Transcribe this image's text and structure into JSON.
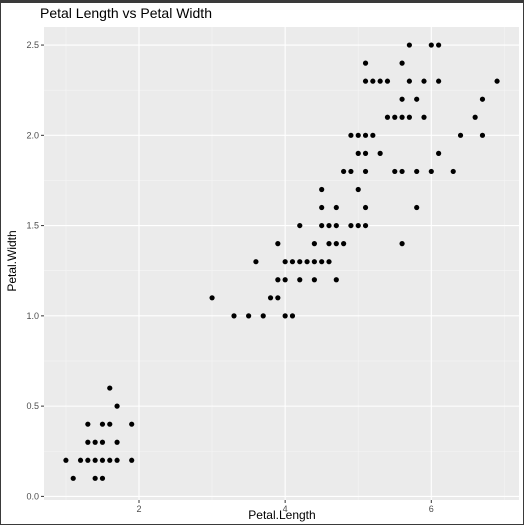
{
  "chart_data": {
    "type": "scatter",
    "title": "Petal Length vs Petal Width",
    "xlabel": "Petal.Length",
    "ylabel": "Petal.Width",
    "xlim": [
      0.7,
      7.2
    ],
    "ylim": [
      -0.02,
      2.6
    ],
    "x_ticks": [
      2,
      4,
      6
    ],
    "x_tick_labels": [
      "2",
      "4",
      "6"
    ],
    "y_ticks": [
      0,
      0.5,
      1,
      1.5,
      2,
      2.5
    ],
    "y_tick_labels": [
      "0.0",
      "0.5",
      "1.0",
      "1.5",
      "2.0",
      "2.5"
    ],
    "grid": true,
    "legend": "none",
    "colors": {
      "panel": "#ebebeb",
      "grid_major": "#ffffff",
      "point": "#000000"
    },
    "points": [
      [
        1.0,
        0.2
      ],
      [
        1.1,
        0.1
      ],
      [
        1.2,
        0.2
      ],
      [
        1.3,
        0.2
      ],
      [
        1.3,
        0.3
      ],
      [
        1.3,
        0.4
      ],
      [
        1.4,
        0.1
      ],
      [
        1.4,
        0.2
      ],
      [
        1.4,
        0.3
      ],
      [
        1.5,
        0.1
      ],
      [
        1.5,
        0.2
      ],
      [
        1.5,
        0.3
      ],
      [
        1.5,
        0.4
      ],
      [
        1.6,
        0.2
      ],
      [
        1.6,
        0.4
      ],
      [
        1.6,
        0.6
      ],
      [
        1.7,
        0.2
      ],
      [
        1.7,
        0.3
      ],
      [
        1.7,
        0.5
      ],
      [
        1.9,
        0.2
      ],
      [
        1.9,
        0.4
      ],
      [
        3.0,
        1.1
      ],
      [
        3.3,
        1.0
      ],
      [
        3.5,
        1.0
      ],
      [
        3.6,
        1.3
      ],
      [
        3.7,
        1.0
      ],
      [
        3.8,
        1.1
      ],
      [
        3.9,
        1.1
      ],
      [
        3.9,
        1.2
      ],
      [
        3.9,
        1.4
      ],
      [
        4.0,
        1.0
      ],
      [
        4.0,
        1.2
      ],
      [
        4.0,
        1.3
      ],
      [
        4.1,
        1.0
      ],
      [
        4.1,
        1.3
      ],
      [
        4.2,
        1.2
      ],
      [
        4.2,
        1.3
      ],
      [
        4.2,
        1.5
      ],
      [
        4.3,
        1.3
      ],
      [
        4.4,
        1.2
      ],
      [
        4.4,
        1.3
      ],
      [
        4.4,
        1.4
      ],
      [
        4.5,
        1.3
      ],
      [
        4.5,
        1.5
      ],
      [
        4.5,
        1.6
      ],
      [
        4.5,
        1.7
      ],
      [
        4.6,
        1.3
      ],
      [
        4.6,
        1.4
      ],
      [
        4.6,
        1.5
      ],
      [
        4.7,
        1.2
      ],
      [
        4.7,
        1.4
      ],
      [
        4.7,
        1.5
      ],
      [
        4.7,
        1.6
      ],
      [
        4.8,
        1.4
      ],
      [
        4.8,
        1.8
      ],
      [
        4.9,
        1.5
      ],
      [
        4.9,
        1.8
      ],
      [
        4.9,
        2.0
      ],
      [
        5.0,
        1.5
      ],
      [
        5.0,
        1.7
      ],
      [
        5.0,
        1.9
      ],
      [
        5.0,
        2.0
      ],
      [
        5.1,
        1.5
      ],
      [
        5.1,
        1.6
      ],
      [
        5.1,
        1.8
      ],
      [
        5.1,
        1.9
      ],
      [
        5.1,
        2.0
      ],
      [
        5.1,
        2.3
      ],
      [
        5.1,
        2.4
      ],
      [
        5.2,
        2.0
      ],
      [
        5.2,
        2.3
      ],
      [
        5.3,
        1.9
      ],
      [
        5.3,
        2.3
      ],
      [
        5.4,
        2.1
      ],
      [
        5.4,
        2.3
      ],
      [
        5.5,
        1.8
      ],
      [
        5.5,
        2.1
      ],
      [
        5.6,
        1.4
      ],
      [
        5.6,
        1.8
      ],
      [
        5.6,
        2.1
      ],
      [
        5.6,
        2.2
      ],
      [
        5.6,
        2.4
      ],
      [
        5.7,
        2.1
      ],
      [
        5.7,
        2.3
      ],
      [
        5.7,
        2.5
      ],
      [
        5.8,
        1.6
      ],
      [
        5.8,
        1.8
      ],
      [
        5.8,
        2.2
      ],
      [
        5.9,
        2.1
      ],
      [
        5.9,
        2.3
      ],
      [
        6.0,
        1.8
      ],
      [
        6.0,
        2.5
      ],
      [
        6.1,
        1.9
      ],
      [
        6.1,
        2.3
      ],
      [
        6.1,
        2.5
      ],
      [
        6.3,
        1.8
      ],
      [
        6.4,
        2.0
      ],
      [
        6.6,
        2.1
      ],
      [
        6.7,
        2.0
      ],
      [
        6.7,
        2.2
      ],
      [
        6.9,
        2.3
      ]
    ]
  }
}
